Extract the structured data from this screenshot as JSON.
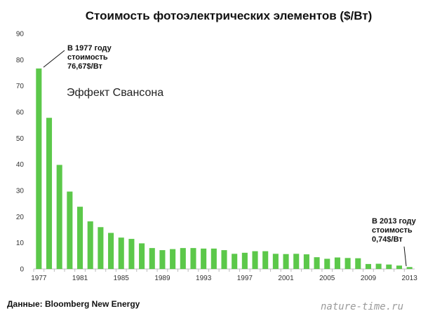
{
  "chart_data": {
    "type": "bar",
    "title": "Стоимость фотоэлектрических элементов ($/Вт)",
    "xlabel": "",
    "ylabel": "",
    "ylim": [
      0,
      90
    ],
    "yticks": [
      "0",
      "10",
      "20",
      "30",
      "40",
      "50",
      "60",
      "70",
      "80",
      "90"
    ],
    "xtick_labels": [
      "1977",
      "1981",
      "1985",
      "1989",
      "1993",
      "1997",
      "2001",
      "2005",
      "2009",
      "2013"
    ],
    "categories": [
      "1977",
      "1978",
      "1979",
      "1980",
      "1981",
      "1982",
      "1983",
      "1984",
      "1985",
      "1986",
      "1987",
      "1988",
      "1989",
      "1990",
      "1991",
      "1992",
      "1993",
      "1994",
      "1995",
      "1996",
      "1997",
      "1998",
      "1999",
      "2000",
      "2001",
      "2002",
      "2003",
      "2004",
      "2005",
      "2006",
      "2007",
      "2008",
      "2009",
      "2010",
      "2011",
      "2012",
      "2013"
    ],
    "values": [
      76.67,
      57.8,
      39.8,
      29.6,
      23.8,
      18.2,
      16.0,
      13.8,
      12.0,
      11.5,
      9.8,
      8.0,
      7.2,
      7.6,
      8.0,
      8.0,
      7.8,
      7.8,
      7.2,
      5.8,
      6.2,
      6.8,
      6.8,
      5.8,
      5.7,
      5.8,
      5.6,
      4.5,
      3.9,
      4.4,
      4.2,
      4.1,
      1.9,
      2.0,
      1.7,
      1.3,
      0.74
    ],
    "bar_color": "#5cc84a",
    "grid": false,
    "annotations": [
      {
        "lines": [
          "В 1977 году",
          "стоимость",
          "76,67$/Вт"
        ]
      },
      {
        "lines": [
          "В 2013 году",
          "стоимость",
          "0,74$/Вт"
        ]
      },
      {
        "text": "Эффект Свансона"
      }
    ]
  },
  "source_label": "Данные: Bloomberg New Energy",
  "watermark": "nature-time.ru"
}
